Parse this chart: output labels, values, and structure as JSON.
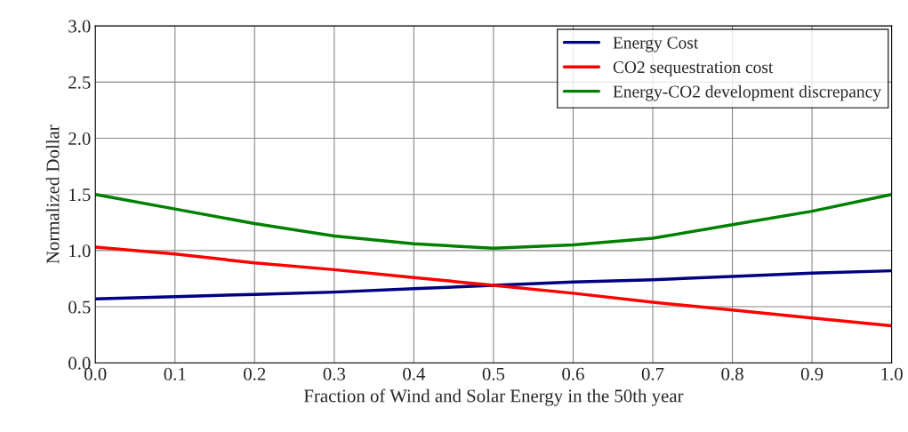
{
  "chart_data": {
    "type": "line",
    "xlabel": "Fraction of Wind and Solar Energy in the 50th year",
    "ylabel": "Normalized Dollar",
    "x": [
      0.0,
      0.1,
      0.2,
      0.3,
      0.4,
      0.5,
      0.6,
      0.7,
      0.8,
      0.9,
      1.0
    ],
    "series": [
      {
        "name": "Energy Cost",
        "color": "#000080",
        "values": [
          0.57,
          0.59,
          0.61,
          0.63,
          0.66,
          0.69,
          0.72,
          0.74,
          0.77,
          0.8,
          0.82
        ]
      },
      {
        "name": "CO2 sequestration cost",
        "color": "#ff0000",
        "values": [
          1.03,
          0.97,
          0.89,
          0.83,
          0.76,
          0.69,
          0.62,
          0.54,
          0.47,
          0.4,
          0.33
        ]
      },
      {
        "name": "Energy-CO2 development discrepancy",
        "color": "#008000",
        "values": [
          1.5,
          1.37,
          1.24,
          1.13,
          1.06,
          1.02,
          1.05,
          1.11,
          1.23,
          1.35,
          1.5
        ]
      }
    ],
    "xlim": [
      0,
      1
    ],
    "xticks": [
      {
        "value": 0,
        "label": "0.0"
      },
      0.1,
      0.2,
      0.3,
      0.4,
      0.5,
      0.6,
      0.7,
      0.8,
      0.9,
      {
        "value": 1,
        "label": "1.0"
      }
    ],
    "ylim": [
      0,
      3
    ],
    "yticks": [
      {
        "value": 0,
        "label": "0.0"
      },
      0.5,
      {
        "value": 1,
        "label": "1.0"
      },
      1.5,
      {
        "value": 2,
        "label": "2.0"
      },
      2.5,
      {
        "value": 3,
        "label": "3.0"
      }
    ],
    "grid": true,
    "legend": "top right",
    "marker": "none",
    "line_style": "solid"
  }
}
